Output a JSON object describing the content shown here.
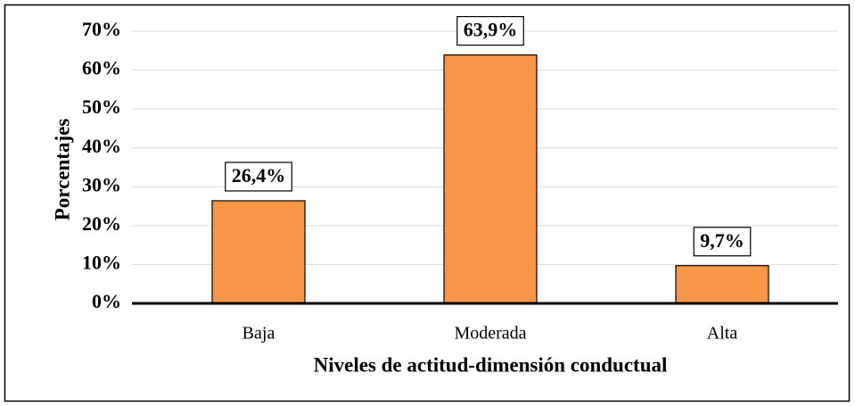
{
  "chart_data": {
    "type": "bar",
    "x_label": "Niveles de actitud-dimensión conductual",
    "y_label": "Porcentajes",
    "categories": [
      "Baja",
      "Moderada",
      "Alta"
    ],
    "values": [
      26.4,
      63.9,
      9.7
    ],
    "value_labels": [
      "26,4%",
      "63,9%",
      "9,7%"
    ],
    "color": "#f79646",
    "ylim": [
      0,
      70
    ],
    "yticks": [
      {
        "value": 0,
        "label": "0%"
      },
      {
        "value": 10,
        "label": "10%"
      },
      {
        "value": 20,
        "label": "20%"
      },
      {
        "value": 30,
        "label": "30%"
      },
      {
        "value": 40,
        "label": "40%"
      },
      {
        "value": 50,
        "label": "50%"
      },
      {
        "value": 60,
        "label": "60%"
      },
      {
        "value": 70,
        "label": "70%"
      }
    ],
    "grid": true
  }
}
